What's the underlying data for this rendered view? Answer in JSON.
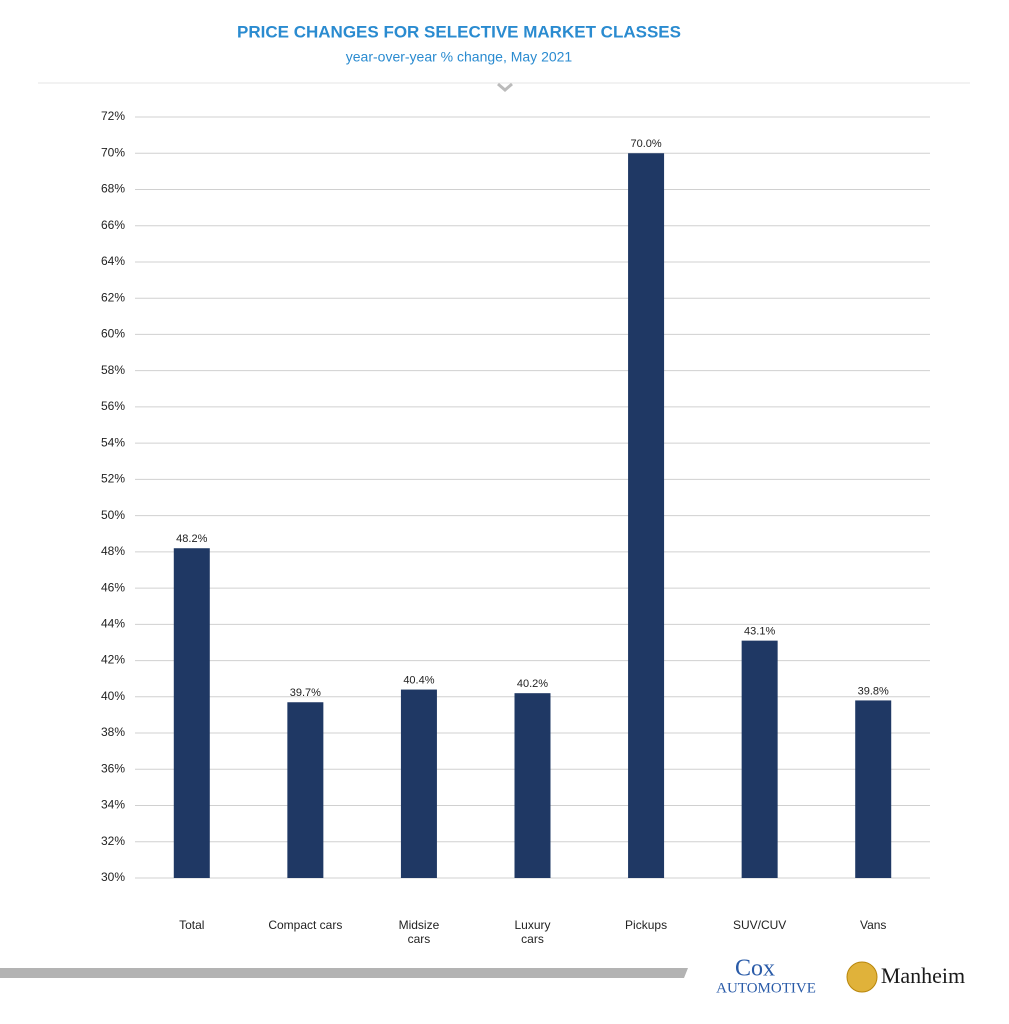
{
  "chart_data": {
    "type": "bar",
    "title": "PRICE CHANGES FOR SELECTIVE MARKET CLASSES",
    "subtitle": "year-over-year % change, May 2021",
    "categories": [
      "Total",
      "Compact cars",
      "Midsize cars",
      "Luxury cars",
      "Pickups",
      "SUV/CUV",
      "Vans"
    ],
    "values": [
      48.2,
      39.7,
      40.4,
      40.2,
      70.0,
      43.1,
      39.8
    ],
    "value_labels": [
      "48.2%",
      "39.7%",
      "40.4%",
      "40.2%",
      "70.0%",
      "43.1%",
      "39.8%"
    ],
    "color": "#1f3864",
    "ylim": [
      30,
      72
    ],
    "yticks": [
      {
        "value": 30,
        "label": "30%"
      },
      {
        "value": 32,
        "label": "32%"
      },
      {
        "value": 34,
        "label": "34%"
      },
      {
        "value": 36,
        "label": "36%"
      },
      {
        "value": 38,
        "label": "38%"
      },
      {
        "value": 40,
        "label": "40%"
      },
      {
        "value": 42,
        "label": "42%"
      },
      {
        "value": 44,
        "label": "44%"
      },
      {
        "value": 46,
        "label": "46%"
      },
      {
        "value": 48,
        "label": "48%"
      },
      {
        "value": 50,
        "label": "50%"
      },
      {
        "value": 52,
        "label": "52%"
      },
      {
        "value": 54,
        "label": "54%"
      },
      {
        "value": 56,
        "label": "56%"
      },
      {
        "value": 58,
        "label": "58%"
      },
      {
        "value": 60,
        "label": "60%"
      },
      {
        "value": 62,
        "label": "62%"
      },
      {
        "value": 64,
        "label": "64%"
      },
      {
        "value": 66,
        "label": "66%"
      },
      {
        "value": 68,
        "label": "68%"
      },
      {
        "value": 70,
        "label": "70%"
      },
      {
        "value": 72,
        "label": "72%"
      }
    ],
    "grid": true
  },
  "footer": {
    "cox": "Cox",
    "automotive": "AUTOMOTIVE",
    "manheim": "Manheim"
  }
}
